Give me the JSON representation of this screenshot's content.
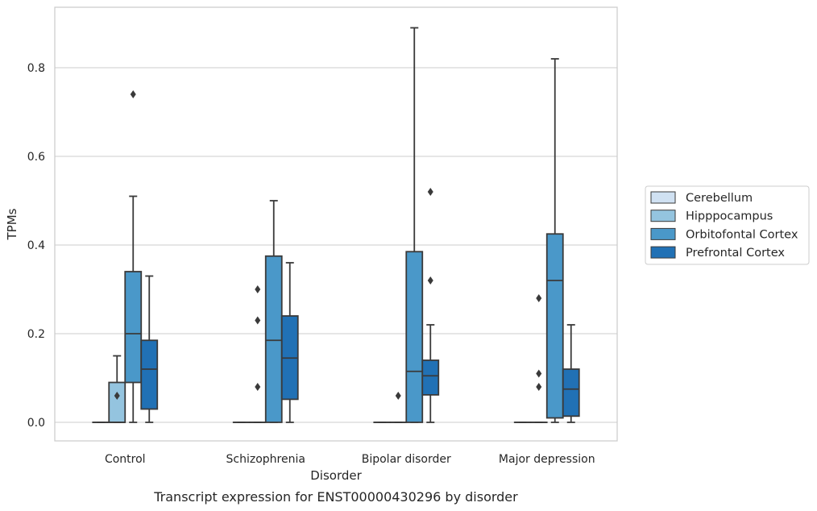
{
  "chart_data": {
    "type": "box",
    "caption": "Transcript expression for ENST00000430296 by disorder",
    "xlabel": "Disorder",
    "ylabel": "TPMs",
    "ylim": [
      -0.043,
      0.943
    ],
    "yticks": [
      0.0,
      0.2,
      0.4,
      0.6,
      0.8
    ],
    "ytick_labels": [
      "0.0",
      "0.2",
      "0.4",
      "0.6",
      "0.8"
    ],
    "grid": "horizontal",
    "legend_position": "right",
    "categories": [
      "Control",
      "Schizophrenia",
      "Bipolar disorder",
      "Major depression"
    ],
    "series": [
      {
        "name": "Cerebellum",
        "color": "#d0e1f2",
        "boxes": [
          {
            "min": 0,
            "q1": 0,
            "median": 0,
            "q3": 0,
            "max": 0,
            "outliers": []
          },
          {
            "min": 0,
            "q1": 0,
            "median": 0,
            "q3": 0,
            "max": 0,
            "outliers": []
          },
          {
            "min": 0,
            "q1": 0,
            "median": 0,
            "q3": 0,
            "max": 0,
            "outliers": []
          },
          {
            "min": 0,
            "q1": 0,
            "median": 0,
            "q3": 0,
            "max": 0,
            "outliers": []
          }
        ]
      },
      {
        "name": "Hipppocampus",
        "color": "#94c4df",
        "boxes": [
          {
            "min": 0,
            "q1": 0,
            "median": 0,
            "q3": 0.09,
            "max": 0.15,
            "outliers": [
              0.06
            ]
          },
          {
            "min": 0,
            "q1": 0,
            "median": 0,
            "q3": 0,
            "max": 0,
            "outliers": [
              0.08,
              0.23,
              0.3
            ]
          },
          {
            "min": 0,
            "q1": 0,
            "median": 0,
            "q3": 0,
            "max": 0,
            "outliers": [
              0.06
            ]
          },
          {
            "min": 0,
            "q1": 0,
            "median": 0,
            "q3": 0,
            "max": 0,
            "outliers": [
              0.08,
              0.11,
              0.28
            ]
          }
        ]
      },
      {
        "name": "Orbitofontal Cortex",
        "color": "#4a98c9",
        "boxes": [
          {
            "min": 0,
            "q1": 0.09,
            "median": 0.2,
            "q3": 0.34,
            "max": 0.51,
            "outliers": [
              0.74
            ]
          },
          {
            "min": 0,
            "q1": 0,
            "median": 0.185,
            "q3": 0.375,
            "max": 0.5,
            "outliers": []
          },
          {
            "min": 0,
            "q1": 0,
            "median": 0.115,
            "q3": 0.385,
            "max": 0.89,
            "outliers": []
          },
          {
            "min": 0,
            "q1": 0.01,
            "median": 0.32,
            "q3": 0.425,
            "max": 0.82,
            "outliers": []
          }
        ]
      },
      {
        "name": "Prefrontal Cortex",
        "color": "#2171b5",
        "boxes": [
          {
            "min": 0,
            "q1": 0.03,
            "median": 0.12,
            "q3": 0.185,
            "max": 0.33,
            "outliers": []
          },
          {
            "min": 0,
            "q1": 0.052,
            "median": 0.145,
            "q3": 0.24,
            "max": 0.36,
            "outliers": []
          },
          {
            "min": 0,
            "q1": 0.062,
            "median": 0.105,
            "q3": 0.14,
            "max": 0.22,
            "outliers": [
              0.32,
              0.52
            ]
          },
          {
            "min": 0,
            "q1": 0.014,
            "median": 0.075,
            "q3": 0.12,
            "max": 0.22,
            "outliers": []
          }
        ]
      }
    ]
  }
}
